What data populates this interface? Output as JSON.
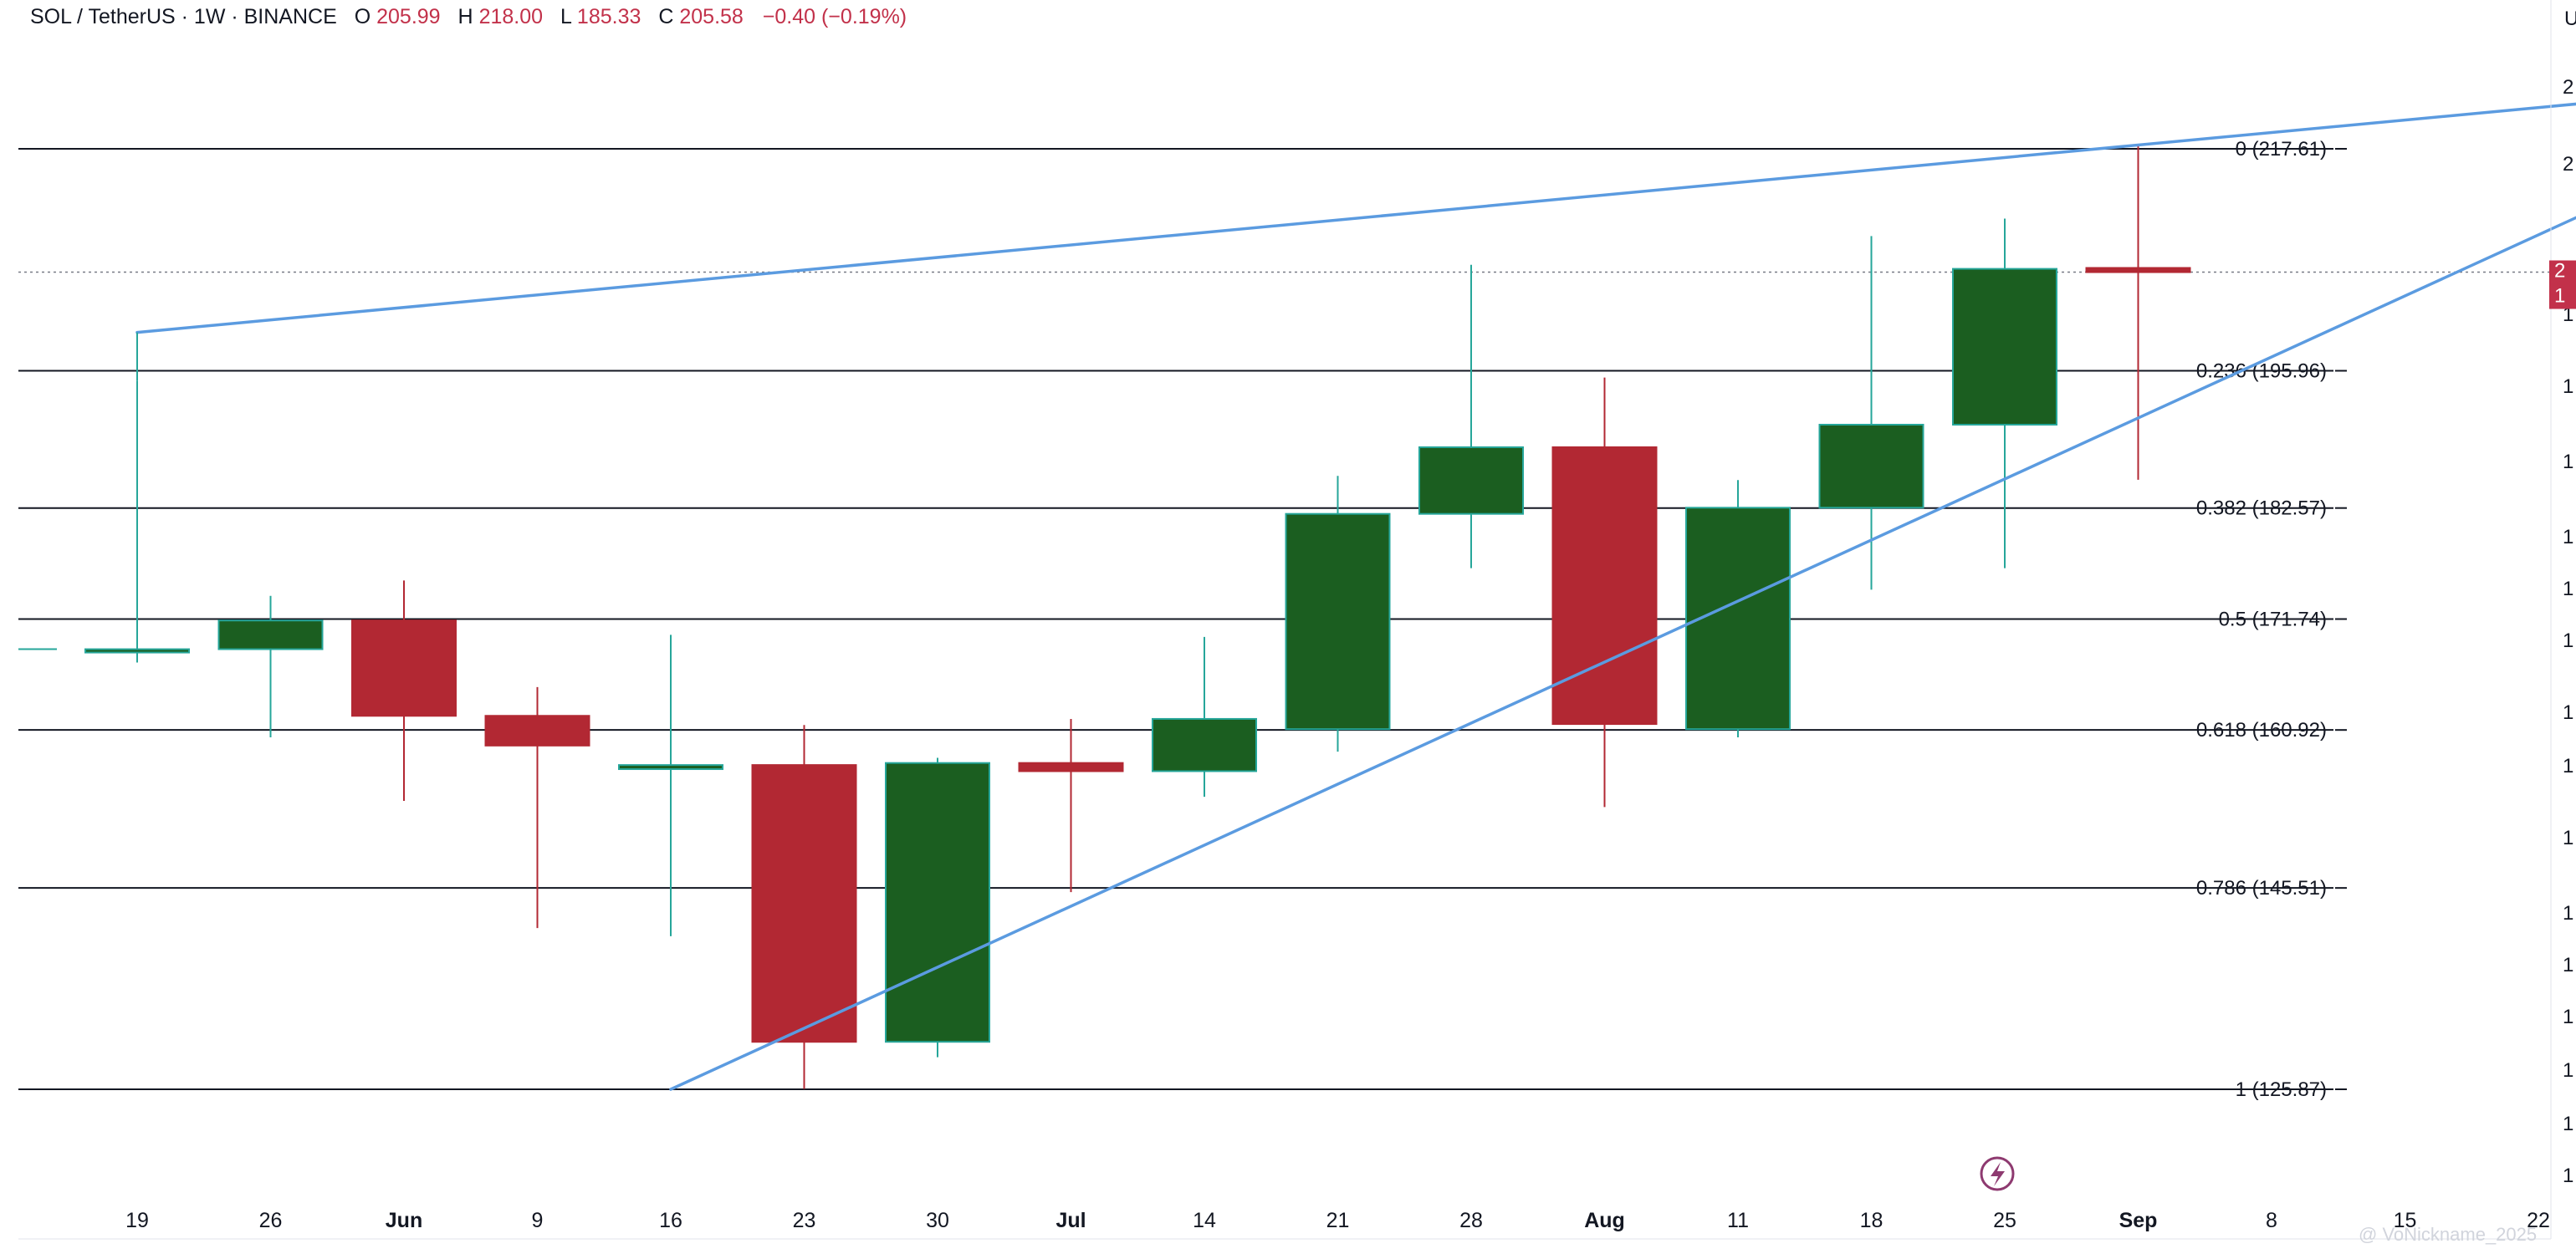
{
  "header": {
    "symbol": "SOL / TetherUS · 1W · BINANCE",
    "open_key": "O",
    "open": "205.99",
    "high_key": "H",
    "high": "218.00",
    "low_key": "L",
    "low": "185.33",
    "close_key": "C",
    "close": "205.58",
    "change": "−0.40 (−0.19%)"
  },
  "colors": {
    "up": "#1b5e20",
    "up_border": "#26a69a",
    "down": "#b22833",
    "trendline": "#5b9be0",
    "fib": "#131722",
    "text_red": "#c2314a",
    "price_badge": "#c2314a",
    "event_icon": "#8e3a70"
  },
  "event_icon": "lightning-event-icon",
  "price_badge": {
    "line1": "2",
    "line2": "1"
  },
  "right_edge_letter": "U",
  "watermark": "@ VoNickname_2025",
  "chart_data": {
    "type": "candlestick",
    "interval": "1W",
    "x_labels": [
      {
        "label": "19",
        "bold": false
      },
      {
        "label": "26",
        "bold": false
      },
      {
        "label": "Jun",
        "bold": true
      },
      {
        "label": "9",
        "bold": false
      },
      {
        "label": "16",
        "bold": false
      },
      {
        "label": "23",
        "bold": false
      },
      {
        "label": "30",
        "bold": false
      },
      {
        "label": "Jul",
        "bold": true
      },
      {
        "label": "14",
        "bold": false
      },
      {
        "label": "21",
        "bold": false
      },
      {
        "label": "28",
        "bold": false
      },
      {
        "label": "Aug",
        "bold": true
      },
      {
        "label": "11",
        "bold": false
      },
      {
        "label": "18",
        "bold": false
      },
      {
        "label": "25",
        "bold": false
      },
      {
        "label": "Sep",
        "bold": true
      },
      {
        "label": "8",
        "bold": false
      },
      {
        "label": "15",
        "bold": false
      },
      {
        "label": "22",
        "bold": false
      }
    ],
    "candles": [
      {
        "o": 168.8,
        "h": 195.0,
        "l": 167.5,
        "c": 168.8
      },
      {
        "o": 168.8,
        "h": 174.0,
        "l": 160.2,
        "c": 171.6
      },
      {
        "o": 171.6,
        "h": 175.5,
        "l": 154.0,
        "c": 162.3
      },
      {
        "o": 162.3,
        "h": 165.1,
        "l": 141.6,
        "c": 159.4
      },
      {
        "o": 157.1,
        "h": 170.2,
        "l": 140.8,
        "c": 157.5
      },
      {
        "o": 157.5,
        "h": 161.4,
        "l": 125.9,
        "c": 130.5
      },
      {
        "o": 130.5,
        "h": 158.2,
        "l": 129.0,
        "c": 157.7
      },
      {
        "o": 157.7,
        "h": 162.0,
        "l": 145.1,
        "c": 156.9
      },
      {
        "o": 156.9,
        "h": 170.0,
        "l": 154.4,
        "c": 162.0
      },
      {
        "o": 161.0,
        "h": 185.7,
        "l": 158.8,
        "c": 182.0
      },
      {
        "o": 182.0,
        "h": 206.3,
        "l": 176.7,
        "c": 188.5
      },
      {
        "o": 188.5,
        "h": 195.3,
        "l": 153.4,
        "c": 161.5
      },
      {
        "o": 161.0,
        "h": 185.3,
        "l": 160.2,
        "c": 182.6
      },
      {
        "o": 182.6,
        "h": 209.1,
        "l": 174.6,
        "c": 190.7
      },
      {
        "o": 190.7,
        "h": 210.8,
        "l": 176.7,
        "c": 205.9
      },
      {
        "o": 205.99,
        "h": 218.0,
        "l": 185.33,
        "c": 205.58
      }
    ],
    "fib_levels": [
      {
        "ratio": 0,
        "price": 217.61,
        "label": "0 (217.61)"
      },
      {
        "ratio": 0.236,
        "price": 195.96,
        "label": "0.236 (195.96)"
      },
      {
        "ratio": 0.382,
        "price": 182.57,
        "label": "0.382 (182.57)"
      },
      {
        "ratio": 0.5,
        "price": 171.74,
        "label": "0.5 (171.74)"
      },
      {
        "ratio": 0.618,
        "price": 160.92,
        "label": "0.618 (160.92)"
      },
      {
        "ratio": 0.786,
        "price": 145.51,
        "label": "0.786 (145.51)"
      },
      {
        "ratio": 1,
        "price": 125.87,
        "label": "1 (125.87)"
      }
    ],
    "trendlines": [
      {
        "from": {
          "bar": 0,
          "price": 199.7
        },
        "to": {
          "bar": 18.3,
          "price": 222.0
        }
      },
      {
        "from": {
          "bar": 4,
          "price": 125.87
        },
        "to": {
          "bar": 18.3,
          "price": 211.0
        }
      }
    ],
    "current_price": 205.58,
    "price_axis_ticks": [
      "2",
      "2",
      "2",
      "1",
      "1",
      "1",
      "1",
      "1",
      "1",
      "1",
      "1",
      "1",
      "1",
      "1",
      "1",
      "1",
      "1",
      "1"
    ],
    "grid": false
  }
}
